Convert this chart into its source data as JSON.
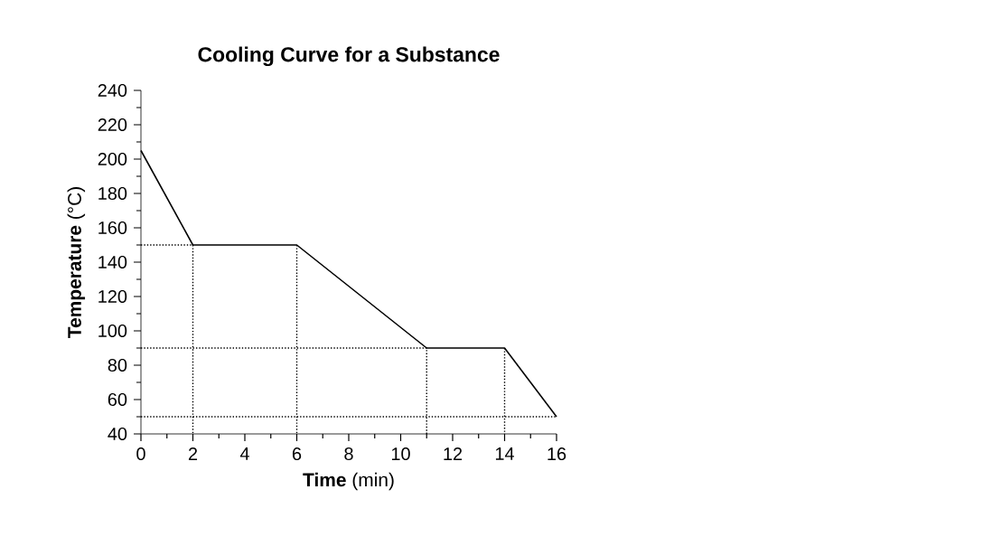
{
  "chart_data": {
    "type": "line",
    "title": "Cooling Curve for a Substance",
    "xlabel": "**Time** (min)",
    "ylabel": "**Temperature** (°C)",
    "x": [
      0,
      2,
      6,
      11,
      14,
      16
    ],
    "series": [
      {
        "color": "#000000",
        "values": [
          205,
          150,
          150,
          90,
          90,
          50
        ],
        "line_style": "solid"
      },
      {
        "color": "#000000",
        "x": [
          0,
          2,
          2
        ],
        "values": [
          150,
          150,
          40
        ],
        "line_style": "dotted"
      },
      {
        "color": "#000000",
        "x": [
          6,
          6
        ],
        "values": [
          150,
          40
        ],
        "line_style": "dotted"
      },
      {
        "color": "#000000",
        "x": [
          0,
          11,
          11
        ],
        "values": [
          90,
          90,
          40
        ],
        "line_style": "dotted"
      },
      {
        "color": "#000000",
        "x": [
          14,
          14
        ],
        "values": [
          90,
          40
        ],
        "line_style": "dotted"
      },
      {
        "color": "#000000",
        "x": [
          0,
          16
        ],
        "values": [
          50,
          50
        ],
        "line_style": "dotted"
      }
    ],
    "xlim": [
      0,
      16
    ],
    "ylim": [
      40,
      240
    ],
    "xticks": [
      0,
      2,
      4,
      6,
      8,
      10,
      12,
      14,
      16
    ],
    "yticks": [
      40,
      60,
      80,
      100,
      120,
      140,
      160,
      180,
      200,
      220,
      240
    ],
    "grid": false,
    "legend": false,
    "marker": "none"
  }
}
